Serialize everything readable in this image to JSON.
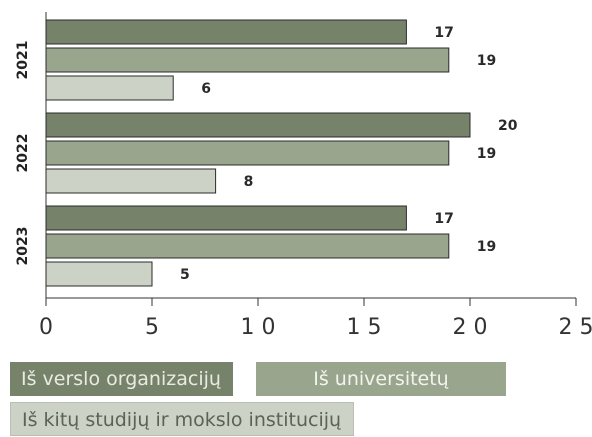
{
  "chart_data": {
    "type": "bar",
    "orientation": "horizontal",
    "categories": [
      "2021",
      "2022",
      "2023"
    ],
    "series": [
      {
        "name": "Iš verslo organizacijų",
        "values": [
          17,
          20,
          17
        ],
        "color": "#77826a"
      },
      {
        "name": "Iš universitetų",
        "values": [
          19,
          19,
          19
        ],
        "color": "#9aa58d"
      },
      {
        "name": "Iš kitų studijų ir mokslo institucijų",
        "values": [
          6,
          8,
          5
        ],
        "color": "#ccd2c6"
      }
    ],
    "xticks": [
      "0",
      "5",
      "1 0",
      "1 5",
      "2 0",
      "2 5"
    ],
    "xlim": [
      0,
      25
    ],
    "grid": false,
    "legend_position": "bottom"
  }
}
